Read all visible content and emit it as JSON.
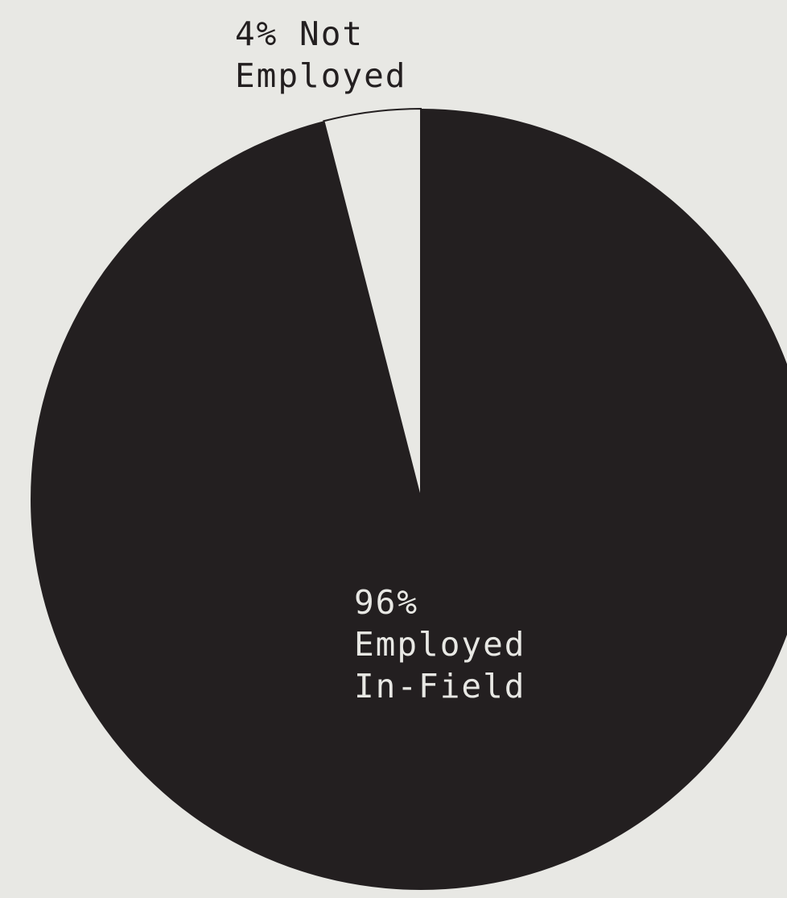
{
  "chart_data": {
    "type": "pie",
    "title": "",
    "slices": [
      {
        "label_lines": [
          "96%",
          "Employed",
          "In-Field"
        ],
        "label": "Employed In-Field",
        "value": 96,
        "color": "#231f20"
      },
      {
        "label_lines": [
          "4% Not",
          "Employed"
        ],
        "label": "Not Employed",
        "value": 4,
        "color": "#e8e8e4"
      }
    ],
    "background": "#e8e8e4",
    "start_direction": "12 o'clock",
    "order": "counter-clockwise from top: Not Employed first"
  }
}
